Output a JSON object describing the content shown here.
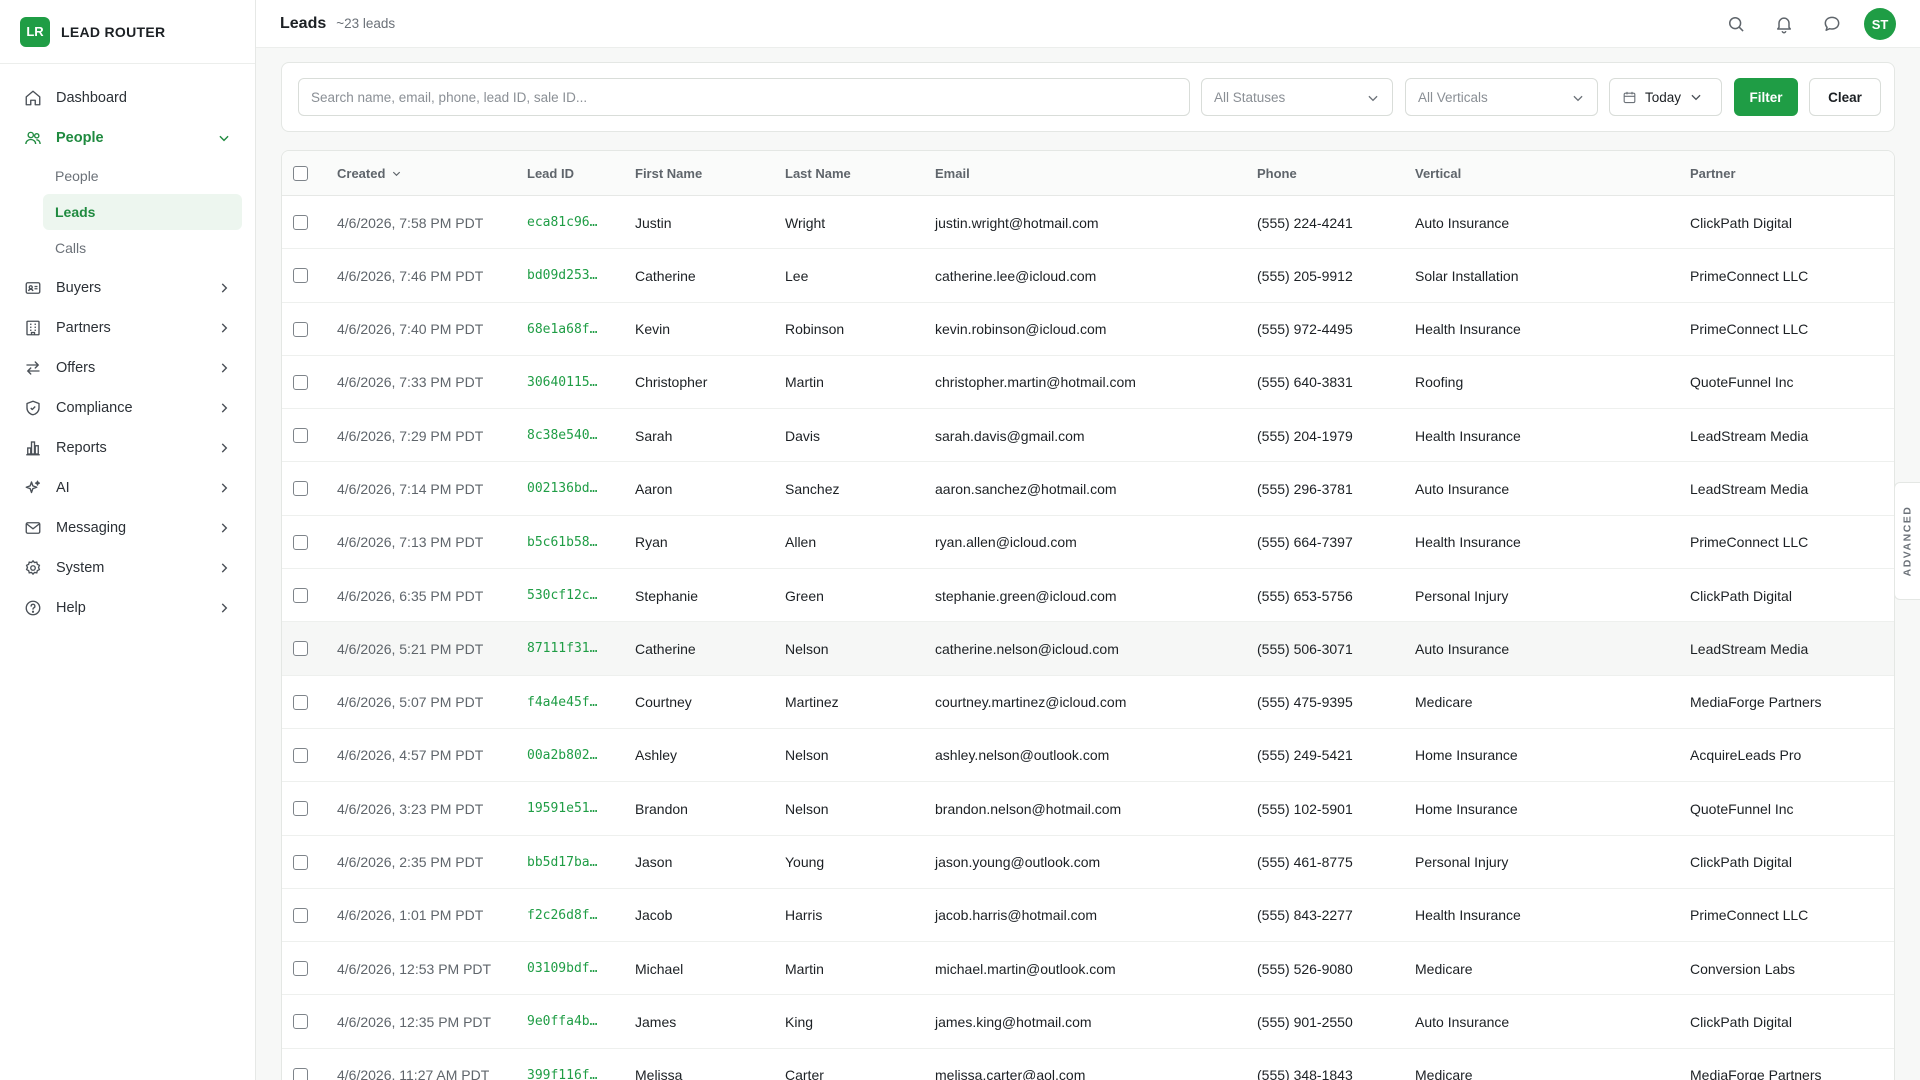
{
  "brand": {
    "logo": "LR",
    "name": "LEAD ROUTER",
    "color": "#1f9d45"
  },
  "nav": {
    "items": [
      {
        "label": "Dashboard",
        "icon": "home-icon"
      },
      {
        "label": "People",
        "icon": "users-icon",
        "expanded": true
      },
      {
        "label": "Buyers",
        "icon": "id-card-icon"
      },
      {
        "label": "Partners",
        "icon": "building-icon"
      },
      {
        "label": "Offers",
        "icon": "arrows-swap-icon"
      },
      {
        "label": "Compliance",
        "icon": "shield-icon"
      },
      {
        "label": "Reports",
        "icon": "bar-chart-icon"
      },
      {
        "label": "AI",
        "icon": "sparkles-icon"
      },
      {
        "label": "Messaging",
        "icon": "mail-icon"
      },
      {
        "label": "System",
        "icon": "gear-icon"
      },
      {
        "label": "Help",
        "icon": "help-circle-icon"
      }
    ],
    "people_sub": [
      "People",
      "Leads",
      "Calls"
    ],
    "active_sub": "Leads"
  },
  "header": {
    "title": "Leads",
    "count": "~23 leads",
    "avatar": "ST"
  },
  "filters": {
    "search_placeholder": "Search name, email, phone, lead ID, sale ID...",
    "status": "All Statuses",
    "vertical": "All Verticals",
    "date": "Today",
    "filter_label": "Filter",
    "clear_label": "Clear"
  },
  "table": {
    "columns": [
      "Created",
      "Lead ID",
      "First Name",
      "Last Name",
      "Email",
      "Phone",
      "Vertical",
      "Partner"
    ],
    "rows": [
      [
        "4/6/2026, 7:58 PM PDT",
        "eca81c96…",
        "Justin",
        "Wright",
        "justin.wright@hotmail.com",
        "(555) 224-4241",
        "Auto Insurance",
        "ClickPath Digital"
      ],
      [
        "4/6/2026, 7:46 PM PDT",
        "bd09d253…",
        "Catherine",
        "Lee",
        "catherine.lee@icloud.com",
        "(555) 205-9912",
        "Solar Installation",
        "PrimeConnect LLC"
      ],
      [
        "4/6/2026, 7:40 PM PDT",
        "68e1a68f…",
        "Kevin",
        "Robinson",
        "kevin.robinson@icloud.com",
        "(555) 972-4495",
        "Health Insurance",
        "PrimeConnect LLC"
      ],
      [
        "4/6/2026, 7:33 PM PDT",
        "30640115…",
        "Christopher",
        "Martin",
        "christopher.martin@hotmail.com",
        "(555) 640-3831",
        "Roofing",
        "QuoteFunnel Inc"
      ],
      [
        "4/6/2026, 7:29 PM PDT",
        "8c38e540…",
        "Sarah",
        "Davis",
        "sarah.davis@gmail.com",
        "(555) 204-1979",
        "Health Insurance",
        "LeadStream Media"
      ],
      [
        "4/6/2026, 7:14 PM PDT",
        "002136bd…",
        "Aaron",
        "Sanchez",
        "aaron.sanchez@hotmail.com",
        "(555) 296-3781",
        "Auto Insurance",
        "LeadStream Media"
      ],
      [
        "4/6/2026, 7:13 PM PDT",
        "b5c61b58…",
        "Ryan",
        "Allen",
        "ryan.allen@icloud.com",
        "(555) 664-7397",
        "Health Insurance",
        "PrimeConnect LLC"
      ],
      [
        "4/6/2026, 6:35 PM PDT",
        "530cf12c…",
        "Stephanie",
        "Green",
        "stephanie.green@icloud.com",
        "(555) 653-5756",
        "Personal Injury",
        "ClickPath Digital"
      ],
      [
        "4/6/2026, 5:21 PM PDT",
        "87111f31…",
        "Catherine",
        "Nelson",
        "catherine.nelson@icloud.com",
        "(555) 506-3071",
        "Auto Insurance",
        "LeadStream Media"
      ],
      [
        "4/6/2026, 5:07 PM PDT",
        "f4a4e45f…",
        "Courtney",
        "Martinez",
        "courtney.martinez@icloud.com",
        "(555) 475-9395",
        "Medicare",
        "MediaForge Partners"
      ],
      [
        "4/6/2026, 4:57 PM PDT",
        "00a2b802…",
        "Ashley",
        "Nelson",
        "ashley.nelson@outlook.com",
        "(555) 249-5421",
        "Home Insurance",
        "AcquireLeads Pro"
      ],
      [
        "4/6/2026, 3:23 PM PDT",
        "19591e51…",
        "Brandon",
        "Nelson",
        "brandon.nelson@hotmail.com",
        "(555) 102-5901",
        "Home Insurance",
        "QuoteFunnel Inc"
      ],
      [
        "4/6/2026, 2:35 PM PDT",
        "bb5d17ba…",
        "Jason",
        "Young",
        "jason.young@outlook.com",
        "(555) 461-8775",
        "Personal Injury",
        "ClickPath Digital"
      ],
      [
        "4/6/2026, 1:01 PM PDT",
        "f2c26d8f…",
        "Jacob",
        "Harris",
        "jacob.harris@hotmail.com",
        "(555) 843-2277",
        "Health Insurance",
        "PrimeConnect LLC"
      ],
      [
        "4/6/2026, 12:53 PM PDT",
        "03109bdf…",
        "Michael",
        "Martin",
        "michael.martin@outlook.com",
        "(555) 526-9080",
        "Medicare",
        "Conversion Labs"
      ],
      [
        "4/6/2026, 12:35 PM PDT",
        "9e0ffa4b…",
        "James",
        "King",
        "james.king@hotmail.com",
        "(555) 901-2550",
        "Auto Insurance",
        "ClickPath Digital"
      ],
      [
        "4/6/2026, 11:27 AM PDT",
        "399f116f…",
        "Melissa",
        "Carter",
        "melissa.carter@aol.com",
        "(555) 348-1843",
        "Medicare",
        "MediaForge Partners"
      ]
    ],
    "highlighted_row": 8
  },
  "advanced_tab": "ADVANCED"
}
